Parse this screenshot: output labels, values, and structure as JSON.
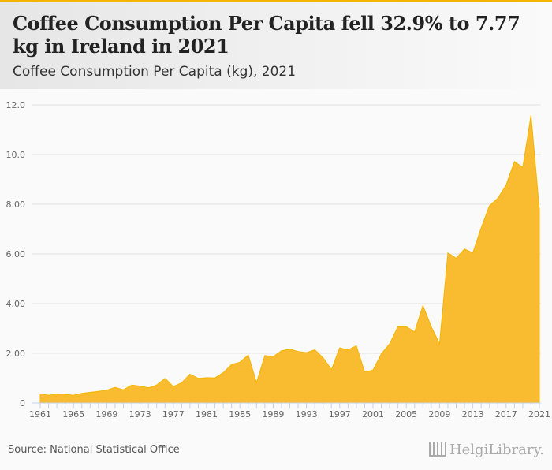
{
  "header": {
    "title": "Coffee Consumption Per Capita fell 32.9% to 7.77 kg in Ireland in 2021",
    "subtitle": "Coffee Consumption Per Capita (kg), 2021"
  },
  "footer": {
    "source": "Source: National Statistical Office",
    "logo": "HelgiLibrary."
  },
  "colors": {
    "fill": "#f9bc30",
    "accent": "#f5b400"
  },
  "chart_data": {
    "type": "area",
    "title": "Coffee Consumption Per Capita (kg), 2021",
    "xlabel": "",
    "ylabel": "",
    "ylim": [
      0,
      12
    ],
    "yticks": [
      "0",
      "2.00",
      "4.00",
      "6.00",
      "8.00",
      "10.0",
      "12.0"
    ],
    "ytick_values": [
      0,
      2,
      4,
      6,
      8,
      10,
      12
    ],
    "xticks": [
      "1961",
      "1965",
      "1969",
      "1973",
      "1977",
      "1981",
      "1985",
      "1989",
      "1993",
      "1997",
      "2001",
      "2005",
      "2009",
      "2013",
      "2017",
      "2021"
    ],
    "x": [
      1961,
      1962,
      1963,
      1964,
      1965,
      1966,
      1967,
      1968,
      1969,
      1970,
      1971,
      1972,
      1973,
      1974,
      1975,
      1976,
      1977,
      1978,
      1979,
      1980,
      1981,
      1982,
      1983,
      1984,
      1985,
      1986,
      1987,
      1988,
      1989,
      1990,
      1991,
      1992,
      1993,
      1994,
      1995,
      1996,
      1997,
      1998,
      1999,
      2000,
      2001,
      2002,
      2003,
      2004,
      2005,
      2006,
      2007,
      2008,
      2009,
      2010,
      2011,
      2012,
      2013,
      2014,
      2015,
      2016,
      2017,
      2018,
      2019,
      2020,
      2021
    ],
    "values": [
      0.37,
      0.31,
      0.36,
      0.35,
      0.31,
      0.39,
      0.43,
      0.47,
      0.51,
      0.63,
      0.53,
      0.72,
      0.68,
      0.61,
      0.72,
      0.99,
      0.66,
      0.81,
      1.16,
      0.99,
      1.02,
      1.01,
      1.22,
      1.55,
      1.64,
      1.93,
      0.82,
      1.91,
      1.86,
      2.1,
      2.17,
      2.07,
      2.03,
      2.14,
      1.82,
      1.35,
      2.22,
      2.14,
      2.3,
      1.25,
      1.32,
      1.98,
      2.38,
      3.07,
      3.07,
      2.86,
      3.92,
      3.07,
      2.38,
      6.04,
      5.83,
      6.2,
      6.04,
      7.04,
      7.94,
      8.24,
      8.77,
      9.72,
      9.48,
      11.58,
      7.77
    ],
    "grid": true,
    "legend": "none"
  }
}
